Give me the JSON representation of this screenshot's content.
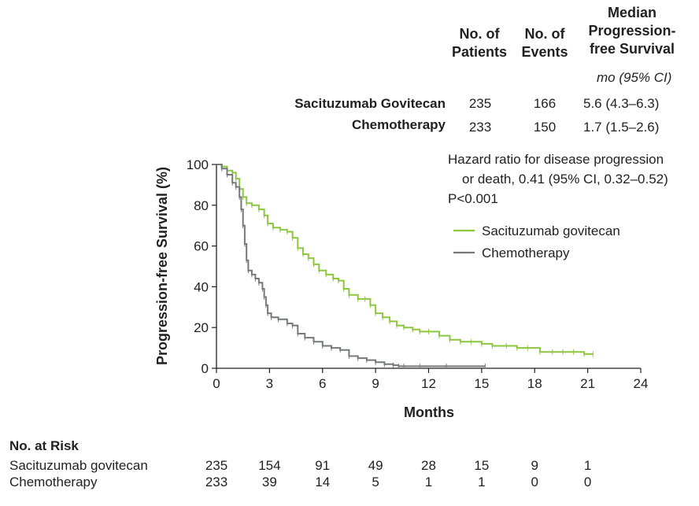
{
  "table": {
    "header_patients": "No. of Patients",
    "header_patients_l1": "No. of",
    "header_patients_l2": "Patients",
    "header_events_l1": "No. of",
    "header_events_l2": "Events",
    "header_median_l1": "Median",
    "header_median_l2": "Progression-",
    "header_median_l3": "free Survival",
    "units": "mo (95% CI)",
    "rows": [
      {
        "group": "Sacituzumab Govitecan",
        "patients": "235",
        "events": "166",
        "median": "5.6 (4.3–6.3)"
      },
      {
        "group": "Chemotherapy",
        "patients": "233",
        "events": "150",
        "median": "1.7 (1.5–2.6)"
      }
    ]
  },
  "hazard": {
    "line1": "Hazard ratio for disease progression",
    "line2": "or death, 0.41 (95% CI, 0.32–0.52)",
    "line3": "P<0.001"
  },
  "risk": {
    "title": "No. at Risk",
    "rows": [
      {
        "label": "Sacituzumab govitecan",
        "values": [
          "235",
          "154",
          "91",
          "49",
          "28",
          "15",
          "9",
          "1"
        ]
      },
      {
        "label": "Chemotherapy",
        "values": [
          "233",
          "39",
          "14",
          "5",
          "1",
          "1",
          "0",
          "0"
        ]
      }
    ]
  },
  "colors": {
    "sacituzumab": "#8dc63f",
    "chemotherapy": "#77787b",
    "axis": "#231f20"
  },
  "chart_data": {
    "type": "line",
    "xlabel": "Months",
    "ylabel": "Progression-free Survival (%)",
    "xlim": [
      0,
      24
    ],
    "ylim": [
      0,
      100
    ],
    "xticks": [
      "0",
      "3",
      "6",
      "9",
      "12",
      "15",
      "18",
      "21",
      "24"
    ],
    "yticks": [
      "0",
      "20",
      "40",
      "60",
      "80",
      "100"
    ],
    "x_tick_values": [
      0,
      3,
      6,
      9,
      12,
      15,
      18,
      21,
      24
    ],
    "y_tick_values": [
      0,
      20,
      40,
      60,
      80,
      100
    ],
    "legend_position": "top-right",
    "series": [
      {
        "name": "Sacituzumab govitecan",
        "color": "#8dc63f",
        "x": [
          0,
          0.3,
          0.6,
          0.9,
          1.1,
          1.3,
          1.5,
          1.7,
          2.0,
          2.4,
          2.7,
          2.9,
          3.2,
          3.6,
          4.0,
          4.3,
          4.6,
          4.9,
          5.2,
          5.5,
          5.8,
          6.2,
          6.6,
          6.9,
          7.2,
          7.5,
          8.0,
          8.4,
          8.7,
          9.0,
          9.4,
          9.8,
          10.2,
          10.6,
          11.1,
          11.5,
          12.0,
          12.6,
          13.2,
          13.8,
          14.4,
          15.0,
          15.6,
          16.4,
          17.0,
          17.6,
          18.3,
          19.0,
          19.6,
          20.2,
          20.8,
          21.3
        ],
        "y": [
          100,
          99,
          97,
          96,
          93,
          88,
          84,
          81,
          80,
          78,
          75,
          71,
          69,
          68,
          67,
          64,
          59,
          56,
          54,
          51,
          48,
          46,
          44,
          43,
          39,
          36,
          34,
          34,
          31,
          27,
          25,
          23,
          21,
          20,
          19,
          18,
          18,
          16,
          14,
          13,
          13,
          12,
          11,
          11,
          10,
          10,
          8,
          8,
          8,
          8,
          7,
          7
        ]
      },
      {
        "name": "Chemotherapy",
        "color": "#77787b",
        "x": [
          0,
          0.3,
          0.6,
          0.9,
          1.1,
          1.3,
          1.4,
          1.5,
          1.6,
          1.7,
          1.8,
          2.0,
          2.2,
          2.4,
          2.6,
          2.7,
          2.8,
          2.9,
          3.1,
          3.5,
          4.0,
          4.3,
          4.6,
          5.0,
          5.5,
          6.0,
          6.5,
          7.0,
          7.5,
          8.0,
          8.5,
          9.0,
          9.5,
          10.0,
          10.3,
          10.6,
          11.5,
          13.0,
          15.2
        ],
        "y": [
          100,
          98,
          95,
          91,
          89,
          84,
          78,
          70,
          61,
          53,
          48,
          46,
          44,
          42,
          39,
          35,
          31,
          27,
          25,
          24,
          22,
          21,
          17,
          15,
          13,
          11,
          10,
          9,
          6,
          5,
          4,
          3,
          2,
          1.5,
          1,
          1,
          1,
          1,
          1
        ]
      }
    ]
  }
}
